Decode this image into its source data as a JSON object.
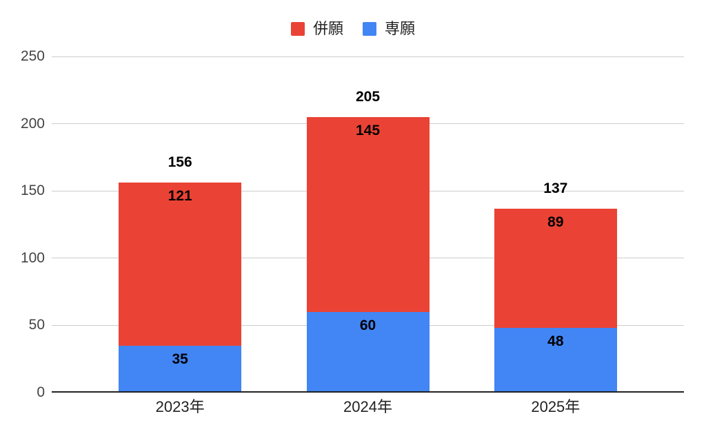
{
  "chart_data": {
    "type": "bar",
    "stacked": true,
    "categories": [
      "2023年",
      "2024年",
      "2025年"
    ],
    "series": [
      {
        "name": "併願",
        "color": "#ea4335",
        "values": [
          121,
          145,
          89
        ]
      },
      {
        "name": "専願",
        "color": "#4285f4",
        "values": [
          35,
          60,
          48
        ]
      }
    ],
    "totals": [
      156,
      205,
      137
    ],
    "title": "",
    "xlabel": "",
    "ylabel": "",
    "ylim": [
      0,
      250
    ],
    "yticks": [
      0,
      50,
      100,
      150,
      200,
      250
    ],
    "grid": true,
    "legend_position": "top",
    "stack_order_bottom_to_top": [
      "専願",
      "併願"
    ]
  },
  "colors": {
    "grid": "#cccccc",
    "axis": "#212121",
    "tick_label": "#444444",
    "category_label": "#222222",
    "value_label": "#000000",
    "background": "#ffffff"
  }
}
